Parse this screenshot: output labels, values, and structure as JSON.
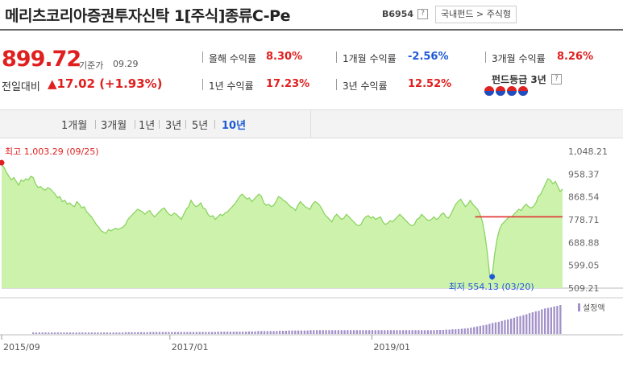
{
  "header": {
    "title": "메리츠코리아증권투자신탁 1[주식]종류C-Pe",
    "code": "B6954",
    "help": "?",
    "breadcrumb": "국내펀드 > 주식형"
  },
  "summary": {
    "price": "899.72",
    "base_label": "기준가",
    "base_date": "09.29",
    "change_label": "전일대비",
    "change_value": "▲17.02 (+1.93%)"
  },
  "stats": [
    {
      "label": "올해 수익률",
      "value": "8.30%",
      "dir": "up"
    },
    {
      "label": "1개월 수익률",
      "value": "-2.56%",
      "dir": "down"
    },
    {
      "label": "3개월 수익률",
      "value": "8.26%",
      "dir": "up"
    },
    {
      "label": "1년 수익률",
      "value": "17.23%",
      "dir": "up"
    },
    {
      "label": "3년 수익률",
      "value": "12.52%",
      "dir": "up"
    }
  ],
  "grade": {
    "label": "펀드등급 3년",
    "help": "?",
    "icon": "taegeuk-grade-icon"
  },
  "tabs": [
    "1개월",
    "3개월",
    "1년",
    "3년",
    "5년",
    "10년"
  ],
  "active_tab": "10년",
  "chart_data": {
    "type": "area",
    "y_ticks": [
      "1,048.21",
      "958.37",
      "868.54",
      "778.71",
      "688.88",
      "599.05",
      "509.21"
    ],
    "ylim": [
      509.21,
      1048.21
    ],
    "x_ticks": [
      "2015/09",
      "2017/01",
      "2019/01"
    ],
    "high_label": "최고 1,003.29 (09/25)",
    "low_label": "최저 554.13 (03/20)",
    "high": 1003.29,
    "low": 554.13,
    "reference_line": 790,
    "volume_legend": "설정액",
    "colors": {
      "fill": "#cdf2ac",
      "line": "#86d25b",
      "ref": "#e03030",
      "high": "#e02020",
      "low": "#1e5ad6",
      "volume": "#a291c9"
    },
    "series": [
      {
        "values": [
          995,
          985,
          965,
          950,
          935,
          945,
          930,
          915,
          935,
          930,
          940,
          935,
          950,
          945,
          920,
          905,
          910,
          900,
          895,
          905,
          900,
          890,
          880,
          865,
          870,
          850,
          855,
          840,
          845,
          835,
          830,
          850,
          840,
          825,
          830,
          810,
          800,
          790,
          775,
          760,
          750,
          735,
          730,
          725,
          740,
          735,
          740,
          745,
          740,
          745,
          750,
          760,
          780,
          790,
          800,
          810,
          820,
          815,
          810,
          800,
          810,
          815,
          800,
          790,
          800,
          810,
          820,
          825,
          810,
          800,
          795,
          805,
          800,
          790,
          780,
          800,
          820,
          830,
          855,
          840,
          830,
          835,
          845,
          825,
          820,
          800,
          790,
          795,
          780,
          790,
          800,
          795,
          805,
          810,
          820,
          830,
          840,
          855,
          870,
          880,
          870,
          860,
          865,
          850,
          860,
          870,
          880,
          870,
          845,
          835,
          840,
          830,
          835,
          850,
          870,
          865,
          855,
          850,
          840,
          830,
          825,
          815,
          835,
          850,
          840,
          830,
          825,
          820,
          840,
          850,
          845,
          835,
          820,
          800,
          790,
          780,
          770,
          790,
          800,
          790,
          780,
          785,
          800,
          790,
          780,
          770,
          760,
          755,
          760,
          780,
          790,
          795,
          785,
          790,
          780,
          785,
          790,
          770,
          760,
          765,
          775,
          770,
          780,
          790,
          800,
          790,
          780,
          770,
          760,
          755,
          760,
          780,
          785,
          800,
          790,
          780,
          775,
          780,
          790,
          780,
          785,
          800,
          805,
          790,
          785,
          800,
          820,
          840,
          850,
          860,
          845,
          830,
          840,
          855,
          840,
          830,
          820,
          800,
          770,
          720,
          650,
          560,
          555,
          640,
          700,
          740,
          760,
          770,
          780,
          790,
          790,
          800,
          810,
          820,
          815,
          830,
          840,
          830,
          825,
          830,
          845,
          870,
          880,
          900,
          920,
          940,
          935,
          920,
          930,
          910,
          890,
          900
        ]
      }
    ],
    "volume": [
      0.05,
      0.05,
      0.05,
      0.05,
      0.05,
      0.05,
      0.05,
      0.05,
      0.05,
      0.05,
      0.05,
      0.05,
      0.05,
      0.05,
      0.05,
      0.05,
      0.05,
      0.05,
      0.05,
      0.05,
      0.05,
      0.05,
      0.05,
      0.05,
      0.05,
      0.05,
      0.05,
      0.05,
      0.05,
      0.05,
      0.06,
      0.06,
      0.06,
      0.06,
      0.06,
      0.06,
      0.06,
      0.06,
      0.07,
      0.07,
      0.07,
      0.07,
      0.07,
      0.07,
      0.07,
      0.07,
      0.07,
      0.07,
      0.07,
      0.07,
      0.07,
      0.07,
      0.07,
      0.07,
      0.07,
      0.07,
      0.07,
      0.07,
      0.07,
      0.07,
      0.08,
      0.08,
      0.08,
      0.08,
      0.08,
      0.08,
      0.08,
      0.08,
      0.08,
      0.08,
      0.09,
      0.09,
      0.09,
      0.1,
      0.1,
      0.1,
      0.1,
      0.1,
      0.1,
      0.1,
      0.11,
      0.11,
      0.11,
      0.12,
      0.12,
      0.12,
      0.12,
      0.12,
      0.12,
      0.12,
      0.13,
      0.13,
      0.13,
      0.13,
      0.13,
      0.13,
      0.13,
      0.13,
      0.13,
      0.13,
      0.13,
      0.13,
      0.13,
      0.13,
      0.13,
      0.13,
      0.13,
      0.13,
      0.13,
      0.13,
      0.13,
      0.13,
      0.13,
      0.13,
      0.13,
      0.13,
      0.13,
      0.13,
      0.13,
      0.13,
      0.13,
      0.13,
      0.13,
      0.13,
      0.13,
      0.13,
      0.13,
      0.13,
      0.13,
      0.13,
      0.13,
      0.14,
      0.14,
      0.14,
      0.15,
      0.15,
      0.16,
      0.16,
      0.17,
      0.18,
      0.19,
      0.2,
      0.22,
      0.24,
      0.26,
      0.28,
      0.3,
      0.32,
      0.35,
      0.38,
      0.4,
      0.42,
      0.45,
      0.48,
      0.5,
      0.53,
      0.56,
      0.6,
      0.62,
      0.65,
      0.68,
      0.72,
      0.75,
      0.78,
      0.8,
      0.85,
      0.88,
      0.9,
      0.92,
      0.95,
      0.97,
      1.0
    ]
  }
}
